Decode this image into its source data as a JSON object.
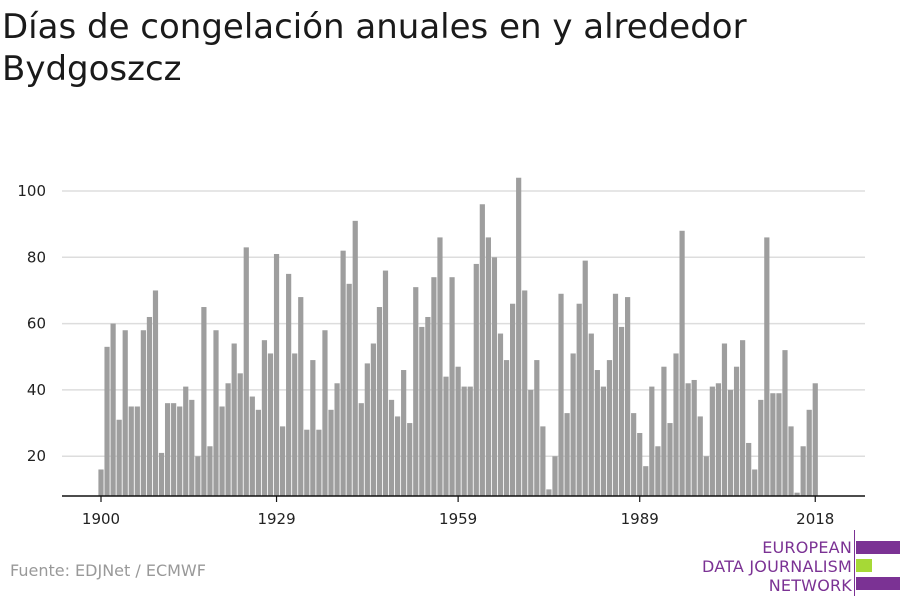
{
  "title": "Días de congelación anuales en y alrededor Bydgoszcz",
  "source": "Fuente: EDJNet / ECMWF",
  "logo": {
    "lines": [
      "EUROPEAN",
      "DATA JOURNALISM",
      "NETWORK"
    ],
    "colors": {
      "purple": "#7b3294",
      "green": "#a6d936"
    }
  },
  "colors": {
    "bar": "#9e9e9e",
    "grid": "#dddddd",
    "axis": "#111111",
    "text": "#222222"
  },
  "chart_data": {
    "type": "bar",
    "title": "Días de congelación anuales en y alrededor Bydgoszcz",
    "xlabel": "",
    "ylabel": "",
    "ylim": [
      8,
      108
    ],
    "xlim": [
      1899,
      2019
    ],
    "grid": true,
    "y_ticks": [
      20,
      40,
      60,
      80,
      100
    ],
    "x_ticks": [
      1900,
      1929,
      1959,
      1989,
      2018
    ],
    "x": [
      1900,
      1901,
      1902,
      1903,
      1904,
      1905,
      1906,
      1907,
      1908,
      1909,
      1910,
      1911,
      1912,
      1913,
      1914,
      1915,
      1916,
      1917,
      1918,
      1919,
      1920,
      1921,
      1922,
      1923,
      1924,
      1925,
      1926,
      1927,
      1928,
      1929,
      1930,
      1931,
      1932,
      1933,
      1934,
      1935,
      1936,
      1937,
      1938,
      1939,
      1940,
      1941,
      1942,
      1943,
      1944,
      1945,
      1946,
      1947,
      1948,
      1949,
      1950,
      1951,
      1952,
      1953,
      1954,
      1955,
      1956,
      1957,
      1958,
      1959,
      1960,
      1961,
      1962,
      1963,
      1964,
      1965,
      1966,
      1967,
      1968,
      1969,
      1970,
      1971,
      1972,
      1973,
      1974,
      1975,
      1976,
      1977,
      1978,
      1979,
      1980,
      1981,
      1982,
      1983,
      1984,
      1985,
      1986,
      1987,
      1988,
      1989,
      1990,
      1991,
      1992,
      1993,
      1994,
      1995,
      1996,
      1997,
      1998,
      1999,
      2000,
      2001,
      2002,
      2003,
      2004,
      2005,
      2006,
      2007,
      2008,
      2009,
      2010,
      2011,
      2012,
      2013,
      2014,
      2015,
      2016,
      2017,
      2018
    ],
    "values": [
      16,
      53,
      60,
      31,
      58,
      35,
      35,
      58,
      62,
      70,
      21,
      36,
      36,
      35,
      41,
      37,
      20,
      65,
      23,
      58,
      35,
      42,
      54,
      45,
      83,
      38,
      34,
      55,
      51,
      81,
      29,
      75,
      51,
      68,
      28,
      49,
      28,
      58,
      34,
      42,
      82,
      72,
      91,
      36,
      48,
      54,
      65,
      76,
      37,
      32,
      46,
      30,
      71,
      59,
      62,
      74,
      86,
      44,
      74,
      47,
      41,
      41,
      78,
      96,
      86,
      80,
      57,
      49,
      66,
      104,
      70,
      40,
      49,
      29,
      10,
      20,
      69,
      33,
      51,
      66,
      79,
      57,
      46,
      41,
      49,
      69,
      59,
      68,
      33,
      27,
      17,
      41,
      23,
      47,
      30,
      51,
      88,
      42,
      43,
      32,
      20,
      41,
      42,
      54,
      40,
      47,
      55,
      24,
      16,
      37,
      86,
      39,
      39,
      52,
      29,
      9,
      23,
      34,
      42
    ]
  }
}
